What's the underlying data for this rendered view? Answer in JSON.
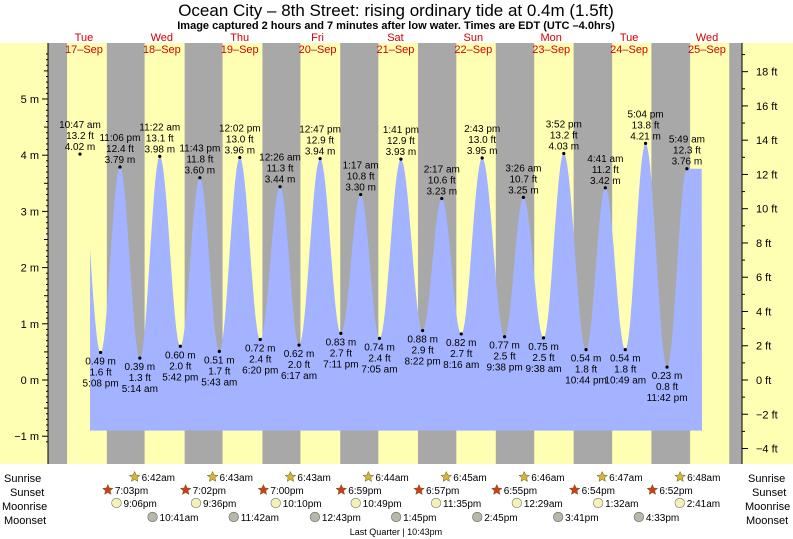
{
  "header": {
    "title": "Ocean City – 8th Street: rising  ordinary tide at 0.4m (1.5ft)",
    "subtitle": "Image captured 2 hours and 7 minutes after low water. Times are EDT (UTC –4.0hrs)"
  },
  "colors": {
    "day": "#ffffb3",
    "night": "#a8a8a8",
    "tide": "#a3b3ff",
    "day_text": "#d40000",
    "sunrise_star": "#d4b73a",
    "sunset_star": "#d23b17",
    "moon": "#f5f0b8",
    "moonset": "#b8b8a8"
  },
  "chart_data": {
    "type": "area",
    "title": "Ocean City – 8th Street: rising  ordinary tide at 0.4m (1.5ft)",
    "days": [
      {
        "dow": "Tue",
        "date": "17–Sep"
      },
      {
        "dow": "Wed",
        "date": "18–Sep"
      },
      {
        "dow": "Thu",
        "date": "19–Sep"
      },
      {
        "dow": "Fri",
        "date": "20–Sep"
      },
      {
        "dow": "Sat",
        "date": "21–Sep"
      },
      {
        "dow": "Sun",
        "date": "22–Sep"
      },
      {
        "dow": "Mon",
        "date": "23–Sep"
      },
      {
        "dow": "Tue",
        "date": "24–Sep"
      },
      {
        "dow": "Wed",
        "date": "25–Sep"
      }
    ],
    "y_left": {
      "unit": "m",
      "ylim": [
        -1.1,
        5.8
      ],
      "ticks": [
        "−1 m",
        "0 m",
        "1 m",
        "2 m",
        "3 m",
        "4 m",
        "5 m"
      ],
      "tick_values": [
        -1,
        0,
        1,
        2,
        3,
        4,
        5
      ]
    },
    "y_right": {
      "unit": "ft",
      "ticks": [
        "−4 ft",
        "−2 ft",
        "0 ft",
        "2 ft",
        "4 ft",
        "6 ft",
        "8 ft",
        "10 ft",
        "12 ft",
        "14 ft",
        "16 ft",
        "18 ft"
      ],
      "tick_values": [
        -4,
        -2,
        0,
        2,
        4,
        6,
        8,
        10,
        12,
        14,
        16,
        18
      ]
    },
    "high_tides": [
      {
        "time": "10:47 am",
        "ft": "13.2 ft",
        "m": "4.02 m",
        "day": 0,
        "t": 10.78,
        "value": 4.02
      },
      {
        "time": "11:06 pm",
        "ft": "12.4 ft",
        "m": "3.79 m",
        "day": 0,
        "t": 23.1,
        "value": 3.79
      },
      {
        "time": "11:22 am",
        "ft": "13.1 ft",
        "m": "3.98 m",
        "day": 1,
        "t": 11.37,
        "value": 3.98
      },
      {
        "time": "11:43 pm",
        "ft": "11.8 ft",
        "m": "3.60 m",
        "day": 1,
        "t": 23.72,
        "value": 3.6
      },
      {
        "time": "12:02 pm",
        "ft": "13.0 ft",
        "m": "3.96 m",
        "day": 2,
        "t": 12.03,
        "value": 3.96
      },
      {
        "time": "12:26 am",
        "ft": "11.3 ft",
        "m": "3.44 m",
        "day": 3,
        "t": 0.43,
        "value": 3.44
      },
      {
        "time": "12:47 pm",
        "ft": "12.9 ft",
        "m": "3.94 m",
        "day": 3,
        "t": 12.78,
        "value": 3.94
      },
      {
        "time": "1:17 am",
        "ft": "10.8 ft",
        "m": "3.30 m",
        "day": 4,
        "t": 1.28,
        "value": 3.3
      },
      {
        "time": "1:41 pm",
        "ft": "12.9 ft",
        "m": "3.93 m",
        "day": 4,
        "t": 13.68,
        "value": 3.93
      },
      {
        "time": "2:17 am",
        "ft": "10.6 ft",
        "m": "3.23 m",
        "day": 5,
        "t": 2.28,
        "value": 3.23
      },
      {
        "time": "2:43 pm",
        "ft": "13.0 ft",
        "m": "3.95 m",
        "day": 5,
        "t": 14.72,
        "value": 3.95
      },
      {
        "time": "3:26 am",
        "ft": "10.7 ft",
        "m": "3.25 m",
        "day": 6,
        "t": 3.43,
        "value": 3.25
      },
      {
        "time": "3:52 pm",
        "ft": "13.2 ft",
        "m": "4.03 m",
        "day": 6,
        "t": 15.87,
        "value": 4.03
      },
      {
        "time": "4:41 am",
        "ft": "11.2 ft",
        "m": "3.42 m",
        "day": 7,
        "t": 4.68,
        "value": 3.42
      },
      {
        "time": "5:04 pm",
        "ft": "13.8 ft",
        "m": "4.21 m",
        "day": 7,
        "t": 17.07,
        "value": 4.21
      },
      {
        "time": "5:49 am",
        "ft": "12.3 ft",
        "m": "3.76 m",
        "day": 8,
        "t": 5.82,
        "value": 3.76
      }
    ],
    "low_tides": [
      {
        "time": "5:08 pm",
        "ft": "1.6 ft",
        "m": "0.49 m",
        "day": 0,
        "t": 17.13,
        "value": 0.49
      },
      {
        "time": "5:14 am",
        "ft": "1.3 ft",
        "m": "0.39 m",
        "day": 1,
        "t": 5.23,
        "value": 0.39
      },
      {
        "time": "5:42 pm",
        "ft": "2.0 ft",
        "m": "0.60 m",
        "day": 1,
        "t": 17.7,
        "value": 0.6
      },
      {
        "time": "5:43 am",
        "ft": "1.7 ft",
        "m": "0.51 m",
        "day": 2,
        "t": 5.72,
        "value": 0.51
      },
      {
        "time": "6:20 pm",
        "ft": "2.4 ft",
        "m": "0.72 m",
        "day": 2,
        "t": 18.33,
        "value": 0.72
      },
      {
        "time": "6:17 am",
        "ft": "2.0 ft",
        "m": "0.62 m",
        "day": 3,
        "t": 6.28,
        "value": 0.62
      },
      {
        "time": "7:11 pm",
        "ft": "2.7 ft",
        "m": "0.83 m",
        "day": 3,
        "t": 19.18,
        "value": 0.83
      },
      {
        "time": "7:05 am",
        "ft": "2.4 ft",
        "m": "0.74 m",
        "day": 4,
        "t": 7.08,
        "value": 0.74
      },
      {
        "time": "8:22 pm",
        "ft": "2.9 ft",
        "m": "0.88 m",
        "day": 4,
        "t": 20.37,
        "value": 0.88
      },
      {
        "time": "8:16 am",
        "ft": "2.7 ft",
        "m": "0.82 m",
        "day": 5,
        "t": 8.27,
        "value": 0.82
      },
      {
        "time": "9:38 pm",
        "ft": "2.5 ft",
        "m": "0.77 m",
        "day": 5,
        "t": 21.63,
        "value": 0.77
      },
      {
        "time": "9:38 am",
        "ft": "2.5 ft",
        "m": "0.75 m",
        "day": 6,
        "t": 9.63,
        "value": 0.75
      },
      {
        "time": "10:44 pm",
        "ft": "1.8 ft",
        "m": "0.54 m",
        "day": 6,
        "t": 22.73,
        "value": 0.54
      },
      {
        "time": "10:49 am",
        "ft": "1.8 ft",
        "m": "0.54 m",
        "day": 7,
        "t": 10.82,
        "value": 0.54
      },
      {
        "time": "11:42 pm",
        "ft": "0.8 ft",
        "m": "0.23 m",
        "day": 7,
        "t": 23.7,
        "value": 0.23
      }
    ],
    "sunrise": [
      "6:42am",
      "6:43am",
      "6:43am",
      "6:44am",
      "6:45am",
      "6:46am",
      "6:47am",
      "6:48am"
    ],
    "sunset": [
      "7:03pm",
      "7:02pm",
      "7:00pm",
      "6:59pm",
      "6:57pm",
      "6:55pm",
      "6:54pm",
      "6:52pm"
    ],
    "moonrise": [
      "9:06pm",
      "9:36pm",
      "10:10pm",
      "10:49pm",
      "11:35pm",
      "12:29am",
      "1:32am",
      "2:41am"
    ],
    "moonset": [
      "10:41am",
      "11:42am",
      "12:43pm",
      "1:45pm",
      "2:45pm",
      "3:41pm",
      "4:33pm"
    ],
    "moon_phase": "Last Quarter | 10:43pm"
  },
  "rows": {
    "sunrise": "Sunrise",
    "sunset": "Sunset",
    "moonrise": "Moonrise",
    "moonset": "Moonset"
  }
}
